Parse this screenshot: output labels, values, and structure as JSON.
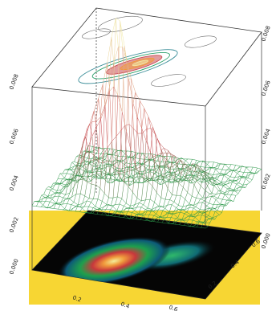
{
  "chart_data": {
    "type": "surface",
    "title": "",
    "xlabel": "",
    "ylabel": "",
    "zlabel": "",
    "legend": "none",
    "views": [
      "top-contour",
      "3d-wireframe",
      "bottom-heatmap"
    ],
    "surface": {
      "peaks": [
        {
          "u": 0.38,
          "v": 0.34,
          "height": 1.0,
          "spread_u": 0.06,
          "spread_v": 0.05
        },
        {
          "u": 0.24,
          "v": 0.32,
          "height": 0.42,
          "spread_u": 0.06,
          "spread_v": 0.07
        },
        {
          "u": 0.52,
          "v": 0.37,
          "height": 0.46,
          "spread_u": 0.08,
          "spread_v": 0.05
        },
        {
          "u": 0.66,
          "v": 0.45,
          "height": 0.22,
          "spread_u": 0.1,
          "spread_v": 0.06
        },
        {
          "u": 0.78,
          "v": 0.56,
          "height": 0.14,
          "spread_u": 0.06,
          "spread_v": 0.05
        }
      ],
      "grid_resolution": [
        40,
        24
      ]
    },
    "colors": {
      "background": "#ffffff",
      "floor": "#f7d633",
      "heatmap_bg": "#050505",
      "low": "#1fa04a",
      "mid": "#c84a52",
      "high": "#f1e9a4"
    }
  }
}
